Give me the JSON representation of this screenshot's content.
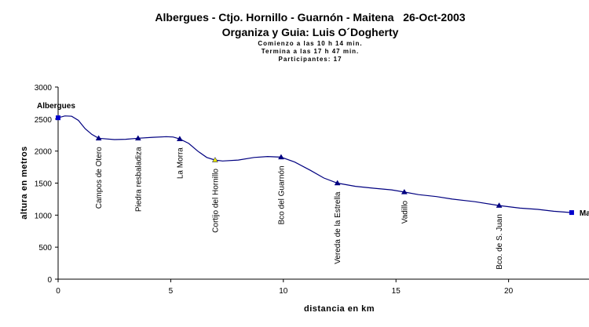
{
  "chart_data": {
    "type": "line",
    "title": "Albergues - Ctjo. Hornillo - Guarnón - Maitena   26-Oct-2003",
    "subtitle": "Organiza y Guia: Luis O´Dogherty",
    "notes": [
      "Comienzo a las 10 h 14 min.",
      "Termina a las 17 h 47 min.",
      "Participantes: 17"
    ],
    "xlabel": "distancia en km",
    "ylabel": "altura en metros",
    "xlim": [
      0,
      23.5
    ],
    "ylim": [
      0,
      3000
    ],
    "xticks": [
      0,
      5,
      10,
      15,
      20
    ],
    "yticks": [
      0,
      500,
      1000,
      1500,
      2000,
      2500,
      3000
    ],
    "grid": false,
    "series": [
      {
        "color": "#000080",
        "x": [
          0,
          0.3,
          0.6,
          0.9,
          1.2,
          1.5,
          1.8,
          2.5,
          3.0,
          3.55,
          4.2,
          4.8,
          5.1,
          5.4,
          5.8,
          6.2,
          6.6,
          6.97,
          7.3,
          8.0,
          8.7,
          9.3,
          9.9,
          10.5,
          11.2,
          11.8,
          12.4,
          13.2,
          14.0,
          14.8,
          15.37,
          16.0,
          16.8,
          17.5,
          18.5,
          19.58,
          20.5,
          21.3,
          22.0,
          22.8
        ],
        "values": [
          2520,
          2550,
          2545,
          2480,
          2350,
          2260,
          2200,
          2180,
          2185,
          2200,
          2215,
          2225,
          2220,
          2190,
          2120,
          2000,
          1900,
          1860,
          1845,
          1860,
          1900,
          1915,
          1905,
          1830,
          1700,
          1580,
          1500,
          1450,
          1420,
          1395,
          1360,
          1320,
          1290,
          1250,
          1210,
          1150,
          1110,
          1090,
          1060,
          1040
        ]
      }
    ],
    "waypoints": {
      "labels": [
        "Albergues",
        "Campos de Otero",
        "Piedra resbaladiza",
        "La Morra",
        "Cortijo del Hornillo",
        "Bco del Guarnón",
        "Vereda de la Estrella",
        "Vadillo",
        "Bco. de S. Juan",
        "Maitena"
      ],
      "x": [
        0,
        1.8,
        3.55,
        5.4,
        6.97,
        9.9,
        12.4,
        15.37,
        19.58,
        22.8
      ],
      "y": [
        2520,
        2200,
        2200,
        2190,
        1860,
        1905,
        1500,
        1360,
        1150,
        1040
      ],
      "colors": [
        "#0000cc",
        "#000080",
        "#000080",
        "#000080",
        "#e8e800",
        "#000080",
        "#000080",
        "#000080",
        "#000080",
        "#0000cc"
      ]
    }
  }
}
